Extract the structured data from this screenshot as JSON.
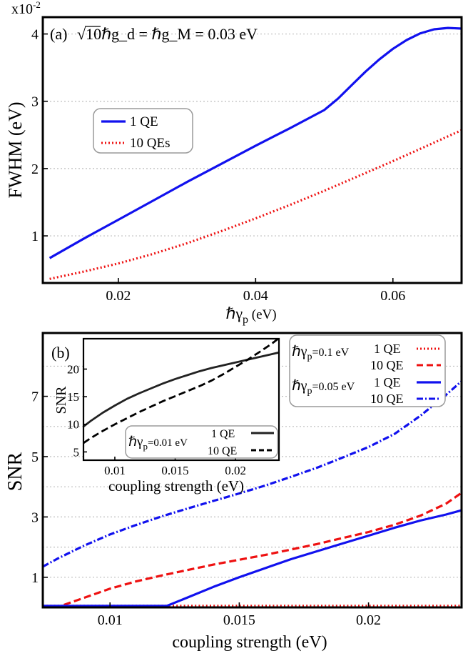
{
  "panels": [
    {
      "id": "a",
      "chart_data": {
        "type": "line",
        "panel_label": "(a)",
        "annotation_prefix": "√10",
        "annotation_rest": "ℏg_d = ℏg_M = 0.03 eV",
        "exponent_label": "x10",
        "exponent_power": "-2",
        "xlabel_main": "ℏγ",
        "xlabel_sub": "p",
        "xlabel_unit": " (eV)",
        "ylabel": "FWHM (eV)",
        "xlim": [
          0.009,
          0.07
        ],
        "ylim": [
          0.3,
          4.25
        ],
        "xticks": [
          0.02,
          0.04,
          0.06
        ],
        "xtick_labels": [
          "0.02",
          "0.04",
          "0.06"
        ],
        "yticks": [
          1,
          2,
          3,
          4
        ],
        "ytick_labels": [
          "1",
          "2",
          "3",
          "4"
        ],
        "grid": "horizontal dotted",
        "legend_position": "left",
        "series": [
          {
            "name": "1  QE",
            "color": "#1111ee",
            "style": "solid",
            "x": [
              0.01,
              0.015,
              0.02,
              0.025,
              0.03,
              0.035,
              0.04,
              0.045,
              0.05,
              0.052,
              0.054,
              0.056,
              0.058,
              0.06,
              0.062,
              0.064,
              0.066,
              0.068,
              0.07
            ],
            "y": [
              0.67,
              0.96,
              1.24,
              1.52,
              1.8,
              2.07,
              2.34,
              2.6,
              2.87,
              3.04,
              3.24,
              3.44,
              3.62,
              3.78,
              3.91,
              4.01,
              4.07,
              4.09,
              4.08
            ]
          },
          {
            "name": "10 QEs",
            "color": "#ee1111",
            "style": "dotted",
            "x": [
              0.01,
              0.015,
              0.02,
              0.025,
              0.03,
              0.035,
              0.04,
              0.045,
              0.05,
              0.055,
              0.06,
              0.065,
              0.07
            ],
            "y": [
              0.36,
              0.47,
              0.59,
              0.73,
              0.89,
              1.07,
              1.26,
              1.46,
              1.67,
              1.89,
              2.11,
              2.34,
              2.57
            ]
          }
        ]
      }
    },
    {
      "id": "b",
      "chart_data": {
        "type": "line",
        "panel_label": "(b)",
        "xlabel": "coupling strength (eV)",
        "ylabel": "SNR",
        "xlim": [
          0.0074,
          0.0236
        ],
        "ylim": [
          0,
          9.1
        ],
        "xticks": [
          0.01,
          0.015,
          0.02
        ],
        "xtick_labels": [
          "0.01",
          "0.015",
          "0.02"
        ],
        "yticks": [
          1,
          3,
          5,
          7
        ],
        "ytick_labels": [
          "1",
          "3",
          "5",
          "7"
        ],
        "grid": "horizontal dotted",
        "legend_position": "top-right",
        "legend_groups": [
          {
            "prefix": "ℏγ",
            "sub": "p",
            "value": "=0.1 eV"
          },
          {
            "prefix": "ℏγ",
            "sub": "p",
            "value": "=0.05 eV"
          }
        ],
        "series": [
          {
            "name": "1 QE",
            "group": 0,
            "color": "#ee1111",
            "style": "dotted",
            "x": [
              0.0074,
              0.0236
            ],
            "y": [
              0.05,
              0.05
            ]
          },
          {
            "name": "10 QE",
            "group": 0,
            "color": "#ee1111",
            "style": "dashed",
            "x": [
              0.0074,
              0.008,
              0.009,
              0.01,
              0.011,
              0.012,
              0.013,
              0.014,
              0.015,
              0.016,
              0.017,
              0.018,
              0.019,
              0.02,
              0.021,
              0.022,
              0.023,
              0.0236
            ],
            "y": [
              0.0,
              0.02,
              0.32,
              0.62,
              0.86,
              1.06,
              1.24,
              1.42,
              1.58,
              1.74,
              1.92,
              2.1,
              2.3,
              2.5,
              2.74,
              3.04,
              3.44,
              3.8
            ]
          },
          {
            "name": "1 QE",
            "group": 1,
            "color": "#1111ee",
            "style": "solid",
            "x": [
              0.0074,
              0.0122,
              0.013,
              0.014,
              0.015,
              0.016,
              0.017,
              0.018,
              0.019,
              0.02,
              0.021,
              0.022,
              0.023,
              0.0236
            ],
            "y": [
              0.05,
              0.05,
              0.33,
              0.68,
              1.0,
              1.3,
              1.6,
              1.86,
              2.12,
              2.38,
              2.64,
              2.88,
              3.08,
              3.22
            ]
          },
          {
            "name": "10 QE",
            "group": 1,
            "color": "#1111ee",
            "style": "dashdot",
            "x": [
              0.0074,
              0.008,
              0.009,
              0.01,
              0.011,
              0.012,
              0.013,
              0.014,
              0.015,
              0.016,
              0.017,
              0.018,
              0.019,
              0.02,
              0.021,
              0.022,
              0.023,
              0.0236
            ],
            "y": [
              1.35,
              1.63,
              2.05,
              2.42,
              2.73,
              3.02,
              3.28,
              3.53,
              3.78,
              4.04,
              4.33,
              4.63,
              4.97,
              5.32,
              5.75,
              6.35,
              7.05,
              7.5
            ]
          }
        ]
      }
    },
    {
      "id": "inset",
      "chart_data": {
        "type": "line",
        "xlabel": "coupling strength (eV)",
        "ylabel": "SNR",
        "xlim": [
          0.0074,
          0.0236
        ],
        "ylim": [
          3.5,
          25.5
        ],
        "xticks": [
          0.01,
          0.015,
          0.02
        ],
        "xtick_labels": [
          "0.01",
          "0.015",
          "0.02"
        ],
        "yticks": [
          5,
          10,
          15,
          20
        ],
        "ytick_labels": [
          "5",
          "10",
          "15",
          "20"
        ],
        "legend_position": "bottom-right",
        "legend_groups": [
          {
            "prefix": "ℏγ",
            "sub": "p",
            "value": "=0.01 eV"
          }
        ],
        "series": [
          {
            "name": "1 QE",
            "group": 0,
            "color": "#222222",
            "style": "solid",
            "x": [
              0.0074,
              0.008,
              0.009,
              0.01,
              0.011,
              0.012,
              0.013,
              0.014,
              0.015,
              0.016,
              0.017,
              0.018,
              0.019,
              0.02,
              0.021,
              0.022,
              0.023,
              0.0236
            ],
            "y": [
              9.6,
              10.6,
              12.1,
              13.4,
              14.6,
              15.6,
              16.5,
              17.4,
              18.2,
              18.9,
              19.6,
              20.2,
              20.7,
              21.2,
              21.7,
              22.2,
              22.7,
              23.0
            ]
          },
          {
            "name": "10 QE",
            "group": 0,
            "color": "#000000",
            "style": "dashed",
            "x": [
              0.0074,
              0.008,
              0.009,
              0.01,
              0.011,
              0.012,
              0.013,
              0.014,
              0.015,
              0.016,
              0.017,
              0.018,
              0.019,
              0.02,
              0.021,
              0.022,
              0.023,
              0.0236
            ],
            "y": [
              6.6,
              7.5,
              8.8,
              10.0,
              11.1,
              12.2,
              13.2,
              14.2,
              15.1,
              16.0,
              16.9,
              17.9,
              19.1,
              20.4,
              21.7,
              23.1,
              24.6,
              25.6
            ]
          }
        ]
      }
    }
  ]
}
